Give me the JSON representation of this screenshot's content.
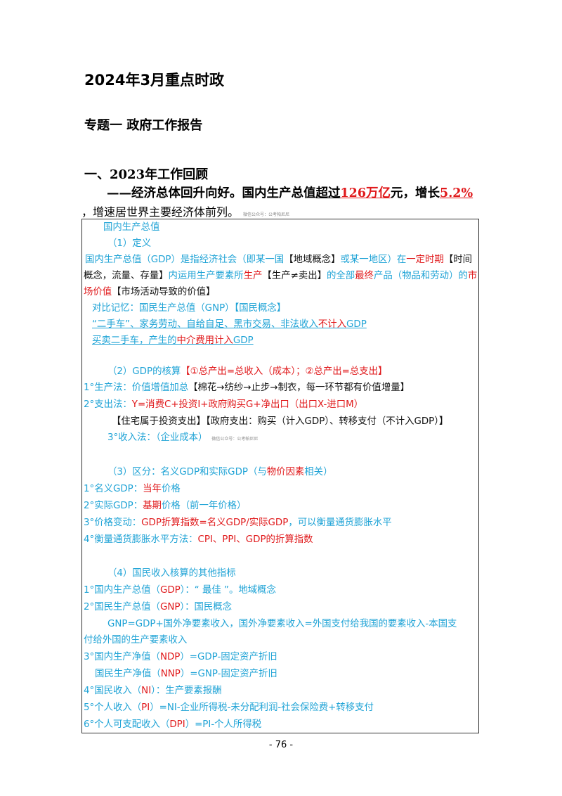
{
  "title": "2024年3月重点时政",
  "subtitle": "专题一 政府工作报告",
  "section": "一、2023年工作回顾",
  "lead": {
    "p1": "——经济总体回升向好。国内生产总值",
    "p2": "超过",
    "p3": "126万亿",
    "p4": "元，增长",
    "p5": "5.2%",
    "p6": "，增速居世界主要经济体前列。",
    "watermark": "微信公众号：公考帕尼尼"
  },
  "box": {
    "heading": "国内生产总值",
    "def": {
      "heading": "（1）定义",
      "l1a": "国内生产总值（GDP）是指经济社会（即某一国",
      "l1b": "【地域概念】",
      "l1c": "或某一地区）在",
      "l1d": "一定时期",
      "l1e": "【时间",
      "l2a": "概念，流量、存量】",
      "l2b": "内运用生产要素所",
      "l2c": "生产",
      "l2d": "【生产≠卖出】",
      "l2e": "的全部",
      "l2f": "最终",
      "l2g": "产品（物品和劳动）的",
      "l2h": "市",
      "l3a": "场价值",
      "l3b": "【市场活动导致的价值】",
      "cmp": "对比记忆：国民生产总值（GNP）【国民概念】",
      "ex1a": "“二手车”、家务劳动、自给自足、黑市交易、非法收入",
      "ex1b": "不计入",
      "ex1c": "GDP",
      "ex2a": "买卖二手车，产生的",
      "ex2b": "中介费用计入",
      "ex2c": "GDP"
    },
    "acct": {
      "heading": "（2）GDP的核算",
      "formula": "【①总产出=总收入（成本）；②总产出=总支出】",
      "m1a": "1°生产法：价值增值加总",
      "m1b": "【棉花→纺纱→止步→制衣，每一环节都有价值增量】",
      "m2a": "2°支出法：",
      "m2b": "Y=消费C+投资I+政府购买G+净出口（出口X-进口M）",
      "m2c": "【住宅属于投资支出】【政府支出：购买（计入GDP）、转移支付（不计入GDP）】",
      "m3": "3°收入法：（企业成本）",
      "watermark": "微信公众号：公考帕尼尼"
    },
    "diff": {
      "h1": "（3）区分：名义GDP和实际GDP（与",
      "h2": "物价因素",
      "h3": "相关）",
      "n1a": "1°名义GDP：",
      "n1b": "当年",
      "n1c": "价格",
      "n2a": "2°实际GDP：",
      "n2b": "基期",
      "n2c": "价格（前一年价格）",
      "n3a": "3°价格变动：",
      "n3b": "GDP折算指数=名义GDP/实际GDP",
      "n3c": "，可以衡量通货膨胀水平",
      "n4a": "4°衡量通货膨胀水平方法：",
      "n4b": "CPI、PPI、GDP的折算指数"
    },
    "other": {
      "heading": "（4）国民收入核算的其他指标",
      "o1a": "1°国内生产总值（",
      "o1b": "GDP",
      "o1c": "）：“ 最佳 ”。地域概念",
      "o2a": "2°国民生产总值（",
      "o2b": "GNP",
      "o2c": "）：国民概念",
      "o2d": "GNP=GDP+国外净要素收入，国外净要素收入=外国支付给我国的要素收入-本国支",
      "o2e": "付给外国的生产要素收入",
      "o3a": "3°国内生产净值（",
      "o3b": "NDP",
      "o3c": "）=GDP-固定资产折旧",
      "o3d": "国民生产净值（",
      "o3e": "NNP",
      "o3f": "）=GNP-固定资产折旧",
      "o4a": "4°国民收入（",
      "o4b": "NI",
      "o4c": "）：生产要素报酬",
      "o5a": "5°个人收入（",
      "o5b": "PI",
      "o5c": "）=NI-企业所得税-未分配利润-社会保险费+转移支付",
      "o6a": "6°个人可支配收入（",
      "o6b": "DPI",
      "o6c": "）=PI-个人所得税"
    }
  },
  "page_number": "- 76 -",
  "colors": {
    "blue": "#1fa3d6",
    "red": "#e0191b"
  }
}
